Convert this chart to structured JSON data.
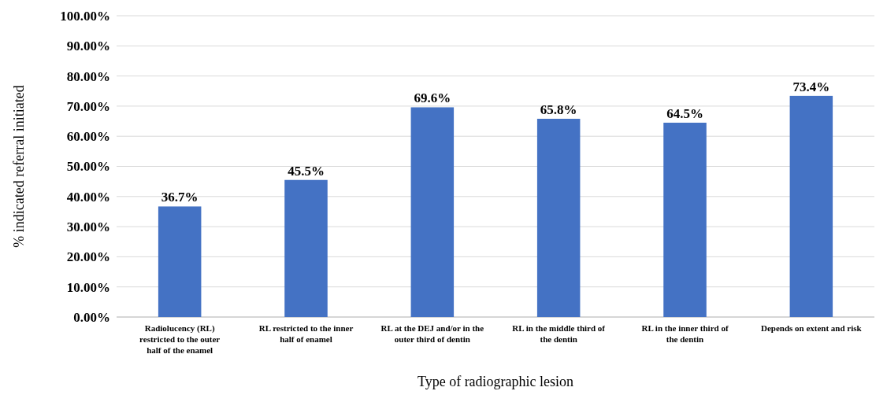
{
  "chart_data": {
    "type": "bar",
    "xlabel": "Type of radiographic lesion",
    "ylabel": "% indicated referral initiated",
    "categories": [
      "Radiolucency (RL) restricted to the outer half of the enamel",
      "RL restricted to the inner half of enamel",
      "RL at the DEJ and/or in the outer third of dentin",
      "RL in the middle third of the dentin",
      "RL in the inner third of the dentin",
      "Depends on extent and risk"
    ],
    "values": [
      36.7,
      45.5,
      69.6,
      65.8,
      64.5,
      73.4
    ],
    "value_labels": [
      "36.7%",
      "45.5%",
      "69.6%",
      "65.8%",
      "64.5%",
      "73.4%"
    ],
    "color": "#4472c4",
    "ylim": [
      0,
      100
    ],
    "yticks": [
      {
        "value": 0,
        "label": "0.00%"
      },
      {
        "value": 10,
        "label": "10.00%"
      },
      {
        "value": 20,
        "label": "20.00%"
      },
      {
        "value": 30,
        "label": "30.00%"
      },
      {
        "value": 40,
        "label": "40.00%"
      },
      {
        "value": 50,
        "label": "50.00%"
      },
      {
        "value": 60,
        "label": "60.00%"
      },
      {
        "value": 70,
        "label": "70.00%"
      },
      {
        "value": 80,
        "label": "80.00%"
      },
      {
        "value": 90,
        "label": "90.00%"
      },
      {
        "value": 100,
        "label": "100.00%"
      }
    ],
    "grid": "y"
  }
}
